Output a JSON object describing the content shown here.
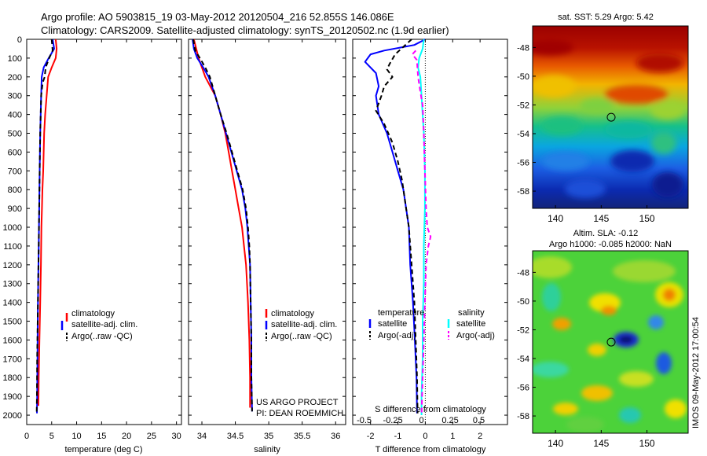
{
  "header": {
    "line1": "Argo profile: AO 5903815_19 03-May-2012 20120504_216 52.855S 146.086E",
    "line2": "Climatology: CARS2009. Satellite-adjusted climatology: synTS_20120502.nc (1.9d earlier)"
  },
  "depth_ticks": [
    0,
    100,
    200,
    300,
    400,
    500,
    600,
    700,
    800,
    900,
    1000,
    1100,
    1200,
    1300,
    1400,
    1500,
    1600,
    1700,
    1800,
    1900,
    2000
  ],
  "colors": {
    "climatology": "#ff0000",
    "satellite": "#0000ff",
    "argo": "#000000",
    "sal_sat": "#00ffff",
    "sal_argo": "#ff00ff"
  },
  "chart_data": [
    {
      "type": "line",
      "xlabel": "temperature (deg C)",
      "ylabel": "",
      "xlim": [
        0,
        31
      ],
      "ylim": [
        0,
        2050
      ],
      "x_ticks": [
        "0",
        "5",
        "10",
        "15",
        "20",
        "25",
        "30"
      ],
      "legend": {
        "position": "lower-right",
        "entries": [
          "climatology",
          "satellite-adj. clim.",
          "Argo(..raw -QC)"
        ]
      },
      "series": [
        {
          "name": "climatology",
          "color": "#ff0000",
          "dash": false,
          "points": [
            [
              5.8,
              0
            ],
            [
              6.0,
              50
            ],
            [
              5.8,
              100
            ],
            [
              5.0,
              150
            ],
            [
              4.3,
              200
            ],
            [
              4.0,
              300
            ],
            [
              3.7,
              400
            ],
            [
              3.5,
              500
            ],
            [
              3.4,
              600
            ],
            [
              3.3,
              700
            ],
            [
              3.15,
              800
            ],
            [
              3.05,
              900
            ],
            [
              2.95,
              1000
            ],
            [
              2.85,
              1200
            ],
            [
              2.7,
              1400
            ],
            [
              2.55,
              1600
            ],
            [
              2.4,
              1800
            ],
            [
              2.35,
              1950
            ]
          ]
        },
        {
          "name": "satellite-adj. clim.",
          "color": "#0000ff",
          "dash": false,
          "points": [
            [
              5.2,
              0
            ],
            [
              5.5,
              50
            ],
            [
              4.4,
              100
            ],
            [
              3.4,
              150
            ],
            [
              3.0,
              200
            ],
            [
              2.9,
              300
            ],
            [
              2.8,
              400
            ],
            [
              2.7,
              500
            ],
            [
              2.6,
              700
            ],
            [
              2.5,
              900
            ],
            [
              2.4,
              1100
            ],
            [
              2.3,
              1300
            ],
            [
              2.2,
              1500
            ],
            [
              2.15,
              1700
            ],
            [
              2.1,
              1900
            ],
            [
              2.05,
              1990
            ]
          ]
        },
        {
          "name": "Argo(..raw -QC)",
          "color": "#000000",
          "dash": true,
          "points": [
            [
              5.0,
              0
            ],
            [
              5.2,
              60
            ],
            [
              4.5,
              100
            ],
            [
              3.8,
              150
            ],
            [
              3.6,
              200
            ],
            [
              3.2,
              230
            ],
            [
              2.9,
              300
            ],
            [
              2.8,
              400
            ],
            [
              2.7,
              500
            ],
            [
              2.6,
              700
            ],
            [
              2.5,
              900
            ],
            [
              2.4,
              1100
            ],
            [
              2.3,
              1300
            ],
            [
              2.2,
              1500
            ],
            [
              2.1,
              1700
            ],
            [
              2.05,
              1900
            ],
            [
              2.0,
              1990
            ]
          ]
        }
      ]
    },
    {
      "type": "line",
      "xlabel": "salinity",
      "ylabel": "",
      "xlim": [
        33.8,
        36.15
      ],
      "ylim": [
        0,
        2050
      ],
      "x_ticks": [
        "34",
        "34.5",
        "35",
        "35.5",
        "36"
      ],
      "legend": {
        "position": "lower-right",
        "entries": [
          "climatology",
          "satellite-adj. clim.",
          "Argo(..raw -QC)"
        ]
      },
      "annotations": [
        "US ARGO PROJECT",
        "PI: DEAN ROEMMICH"
      ],
      "series": [
        {
          "name": "climatology",
          "color": "#ff0000",
          "dash": false,
          "points": [
            [
              33.88,
              0
            ],
            [
              33.95,
              100
            ],
            [
              34.05,
              200
            ],
            [
              34.2,
              300
            ],
            [
              34.28,
              400
            ],
            [
              34.35,
              500
            ],
            [
              34.4,
              600
            ],
            [
              34.45,
              700
            ],
            [
              34.5,
              800
            ],
            [
              34.55,
              900
            ],
            [
              34.6,
              1000
            ],
            [
              34.63,
              1100
            ],
            [
              34.66,
              1200
            ],
            [
              34.69,
              1400
            ],
            [
              34.71,
              1600
            ],
            [
              34.72,
              1800
            ],
            [
              34.72,
              1960
            ]
          ]
        },
        {
          "name": "satellite-adj. clim.",
          "color": "#0000ff",
          "dash": false,
          "points": [
            [
              33.86,
              0
            ],
            [
              33.88,
              50
            ],
            [
              33.93,
              100
            ],
            [
              34.02,
              150
            ],
            [
              34.1,
              200
            ],
            [
              34.2,
              300
            ],
            [
              34.28,
              400
            ],
            [
              34.36,
              500
            ],
            [
              34.44,
              600
            ],
            [
              34.52,
              700
            ],
            [
              34.6,
              800
            ],
            [
              34.65,
              900
            ],
            [
              34.68,
              1000
            ],
            [
              34.7,
              1100
            ],
            [
              34.72,
              1200
            ],
            [
              34.73,
              1400
            ],
            [
              34.74,
              1600
            ],
            [
              34.74,
              1800
            ],
            [
              34.75,
              1980
            ]
          ]
        },
        {
          "name": "Argo(..raw -QC)",
          "color": "#000000",
          "dash": true,
          "points": [
            [
              33.87,
              0
            ],
            [
              33.9,
              60
            ],
            [
              33.97,
              100
            ],
            [
              34.05,
              150
            ],
            [
              34.12,
              200
            ],
            [
              34.2,
              300
            ],
            [
              34.28,
              400
            ],
            [
              34.37,
              500
            ],
            [
              34.45,
              600
            ],
            [
              34.53,
              700
            ],
            [
              34.61,
              800
            ],
            [
              34.66,
              900
            ],
            [
              34.69,
              1000
            ],
            [
              34.71,
              1100
            ],
            [
              34.72,
              1200
            ],
            [
              34.73,
              1400
            ],
            [
              34.74,
              1600
            ],
            [
              34.74,
              1800
            ],
            [
              34.75,
              1980
            ]
          ]
        }
      ]
    },
    {
      "type": "line",
      "xlabel": "T difference from climatology",
      "x2label": "S difference from climatology",
      "ylabel": "",
      "xlim": [
        -2.65,
        3.0
      ],
      "x2lim": [
        -0.6,
        0.75
      ],
      "ylim": [
        0,
        2050
      ],
      "x_ticks": [
        "-2",
        "-1",
        "0",
        "1",
        "2"
      ],
      "x2_ticks": [
        "-0.5",
        "-0.25",
        "0",
        "0.25",
        "0.5"
      ],
      "legend": {
        "position": "lower-right",
        "titles": [
          "temperature",
          "salinity"
        ],
        "entries": [
          "satellite",
          "Argo(-adj)",
          "satellite",
          "Argo(-adj)"
        ]
      },
      "series": [
        {
          "name": "temperature satellite",
          "color": "#0000ff",
          "dash": false,
          "points": [
            [
              0.0,
              0
            ],
            [
              -0.4,
              30
            ],
            [
              -1.5,
              60
            ],
            [
              -2.0,
              80
            ],
            [
              -2.1,
              100
            ],
            [
              -2.2,
              120
            ],
            [
              -1.8,
              180
            ],
            [
              -1.7,
              250
            ],
            [
              -1.8,
              300
            ],
            [
              -1.7,
              400
            ],
            [
              -1.4,
              500
            ],
            [
              -1.2,
              600
            ],
            [
              -1.0,
              700
            ],
            [
              -0.8,
              800
            ],
            [
              -0.7,
              900
            ],
            [
              -0.6,
              1000
            ],
            [
              -0.55,
              1200
            ],
            [
              -0.45,
              1400
            ],
            [
              -0.38,
              1600
            ],
            [
              -0.32,
              1800
            ],
            [
              -0.3,
              1990
            ]
          ]
        },
        {
          "name": "temperature Argo(-adj)",
          "color": "#000000",
          "dash": true,
          "points": [
            [
              -0.5,
              0
            ],
            [
              -0.8,
              40
            ],
            [
              -1.1,
              80
            ],
            [
              -1.3,
              130
            ],
            [
              -1.4,
              160
            ],
            [
              -1.2,
              200
            ],
            [
              -1.5,
              250
            ],
            [
              -1.6,
              300
            ],
            [
              -1.8,
              380
            ],
            [
              -1.5,
              450
            ],
            [
              -1.2,
              550
            ],
            [
              -1.0,
              650
            ],
            [
              -0.85,
              750
            ],
            [
              -0.7,
              900
            ],
            [
              -0.6,
              1000
            ],
            [
              -0.5,
              1200
            ],
            [
              -0.4,
              1400
            ],
            [
              -0.35,
              1600
            ],
            [
              -0.3,
              1800
            ],
            [
              -0.28,
              1990
            ]
          ]
        },
        {
          "name": "salinity satellite",
          "color": "#00ffff",
          "dash": false,
          "axis": "x2",
          "points": [
            [
              0.02,
              0
            ],
            [
              0.01,
              50
            ],
            [
              -0.02,
              100
            ],
            [
              -0.03,
              150
            ],
            [
              -0.01,
              200
            ],
            [
              0.0,
              300
            ],
            [
              0.01,
              400
            ],
            [
              0.02,
              500
            ],
            [
              0.03,
              700
            ],
            [
              0.03,
              900
            ],
            [
              0.02,
              1100
            ],
            [
              0.02,
              1300
            ],
            [
              0.01,
              1500
            ],
            [
              0.01,
              1700
            ],
            [
              0.0,
              1900
            ],
            [
              0.0,
              2000
            ]
          ]
        },
        {
          "name": "salinity Argo(-adj)",
          "color": "#ff00ff",
          "dash": true,
          "axis": "x2",
          "points": [
            [
              -0.05,
              60
            ],
            [
              -0.08,
              80
            ],
            [
              -0.04,
              110
            ],
            [
              -0.03,
              200
            ],
            [
              -0.01,
              280
            ],
            [
              0.01,
              350
            ],
            [
              0.02,
              500
            ],
            [
              0.03,
              700
            ],
            [
              0.04,
              900
            ],
            [
              0.05,
              1000
            ],
            [
              0.08,
              1050
            ],
            [
              0.06,
              1100
            ],
            [
              0.04,
              1200
            ],
            [
              0.03,
              1400
            ],
            [
              0.02,
              1600
            ],
            [
              0.01,
              1800
            ],
            [
              0.0,
              2000
            ]
          ]
        }
      ]
    },
    {
      "type": "heatmap",
      "title": "sat. SST: 5.29 Argo: 5.42",
      "xlim": [
        137.5,
        154.5
      ],
      "ylim": [
        -59.2,
        -46.5
      ],
      "x_ticks": [
        140,
        145,
        150
      ],
      "y_ticks": [
        -48,
        -50,
        -52,
        -54,
        -56,
        -58
      ],
      "marker": {
        "lon": 146.086,
        "lat": -52.855
      }
    },
    {
      "type": "heatmap",
      "title": "Altim. SLA: -0.12",
      "subtitle": "Argo h1000: -0.085 h2000: NaN",
      "xlim": [
        137.5,
        154.5
      ],
      "ylim": [
        -59.2,
        -46.5
      ],
      "x_ticks": [
        140,
        145,
        150
      ],
      "y_ticks": [
        -48,
        -50,
        -52,
        -54,
        -56,
        -58
      ],
      "marker": {
        "lon": 146.086,
        "lat": -52.855
      }
    }
  ],
  "footer_vertical": "IMOS 09-May-2012 17:00:54"
}
